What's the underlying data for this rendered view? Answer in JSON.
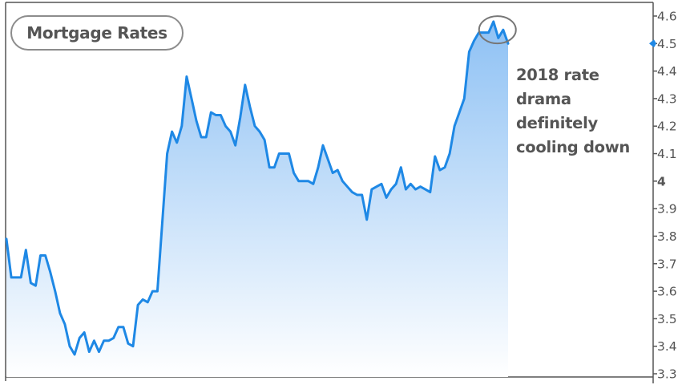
{
  "chart_data": {
    "type": "area",
    "title": "Mortgage Rates",
    "annotation_lines": [
      "2018 rate",
      "drama",
      "definitely",
      "cooling down"
    ],
    "ylim": [
      3.3,
      4.6
    ],
    "yticks": [
      "4.6",
      "4.5",
      "4.4",
      "4.3",
      "4.2",
      "4.1",
      "4",
      "3.9",
      "3.8",
      "3.7",
      "3.6",
      "3.5",
      "3.4",
      "3.3"
    ],
    "y_axis_side": "right",
    "current_value_marker": 4.5,
    "series": [
      {
        "values": [
          3.79,
          3.65,
          3.65,
          3.65,
          3.75,
          3.63,
          3.62,
          3.73,
          3.73,
          3.67,
          3.6,
          3.52,
          3.48,
          3.4,
          3.37,
          3.43,
          3.45,
          3.38,
          3.42,
          3.38,
          3.42,
          3.42,
          3.43,
          3.47,
          3.47,
          3.41,
          3.4,
          3.55,
          3.57,
          3.56,
          3.6,
          3.6,
          3.85,
          4.1,
          4.18,
          4.14,
          4.2,
          4.38,
          4.3,
          4.22,
          4.16,
          4.16,
          4.25,
          4.24,
          4.24,
          4.2,
          4.18,
          4.13,
          4.23,
          4.35,
          4.27,
          4.2,
          4.18,
          4.15,
          4.05,
          4.05,
          4.1,
          4.1,
          4.1,
          4.03,
          4.0,
          4.0,
          4.0,
          3.99,
          4.05,
          4.13,
          4.08,
          4.03,
          4.04,
          4.0,
          3.98,
          3.96,
          3.95,
          3.95,
          3.86,
          3.97,
          3.98,
          3.99,
          3.94,
          3.97,
          3.99,
          4.05,
          3.97,
          3.99,
          3.97,
          3.98,
          3.97,
          3.96,
          4.09,
          4.04,
          4.05,
          4.1,
          4.2,
          4.25,
          4.3,
          4.47,
          4.51,
          4.54,
          4.54,
          4.54,
          4.58,
          4.52,
          4.55,
          4.5
        ],
        "highlight_circle_at": 4.55,
        "color": "#1e88e5"
      }
    ],
    "colors": {
      "line": "#1e88e5",
      "fill_top": "#8ec1f4",
      "fill_bottom": "#ffffff",
      "frame": "#555555",
      "text": "#555555",
      "circle": "#777777",
      "marker": "#1e88e5"
    }
  }
}
